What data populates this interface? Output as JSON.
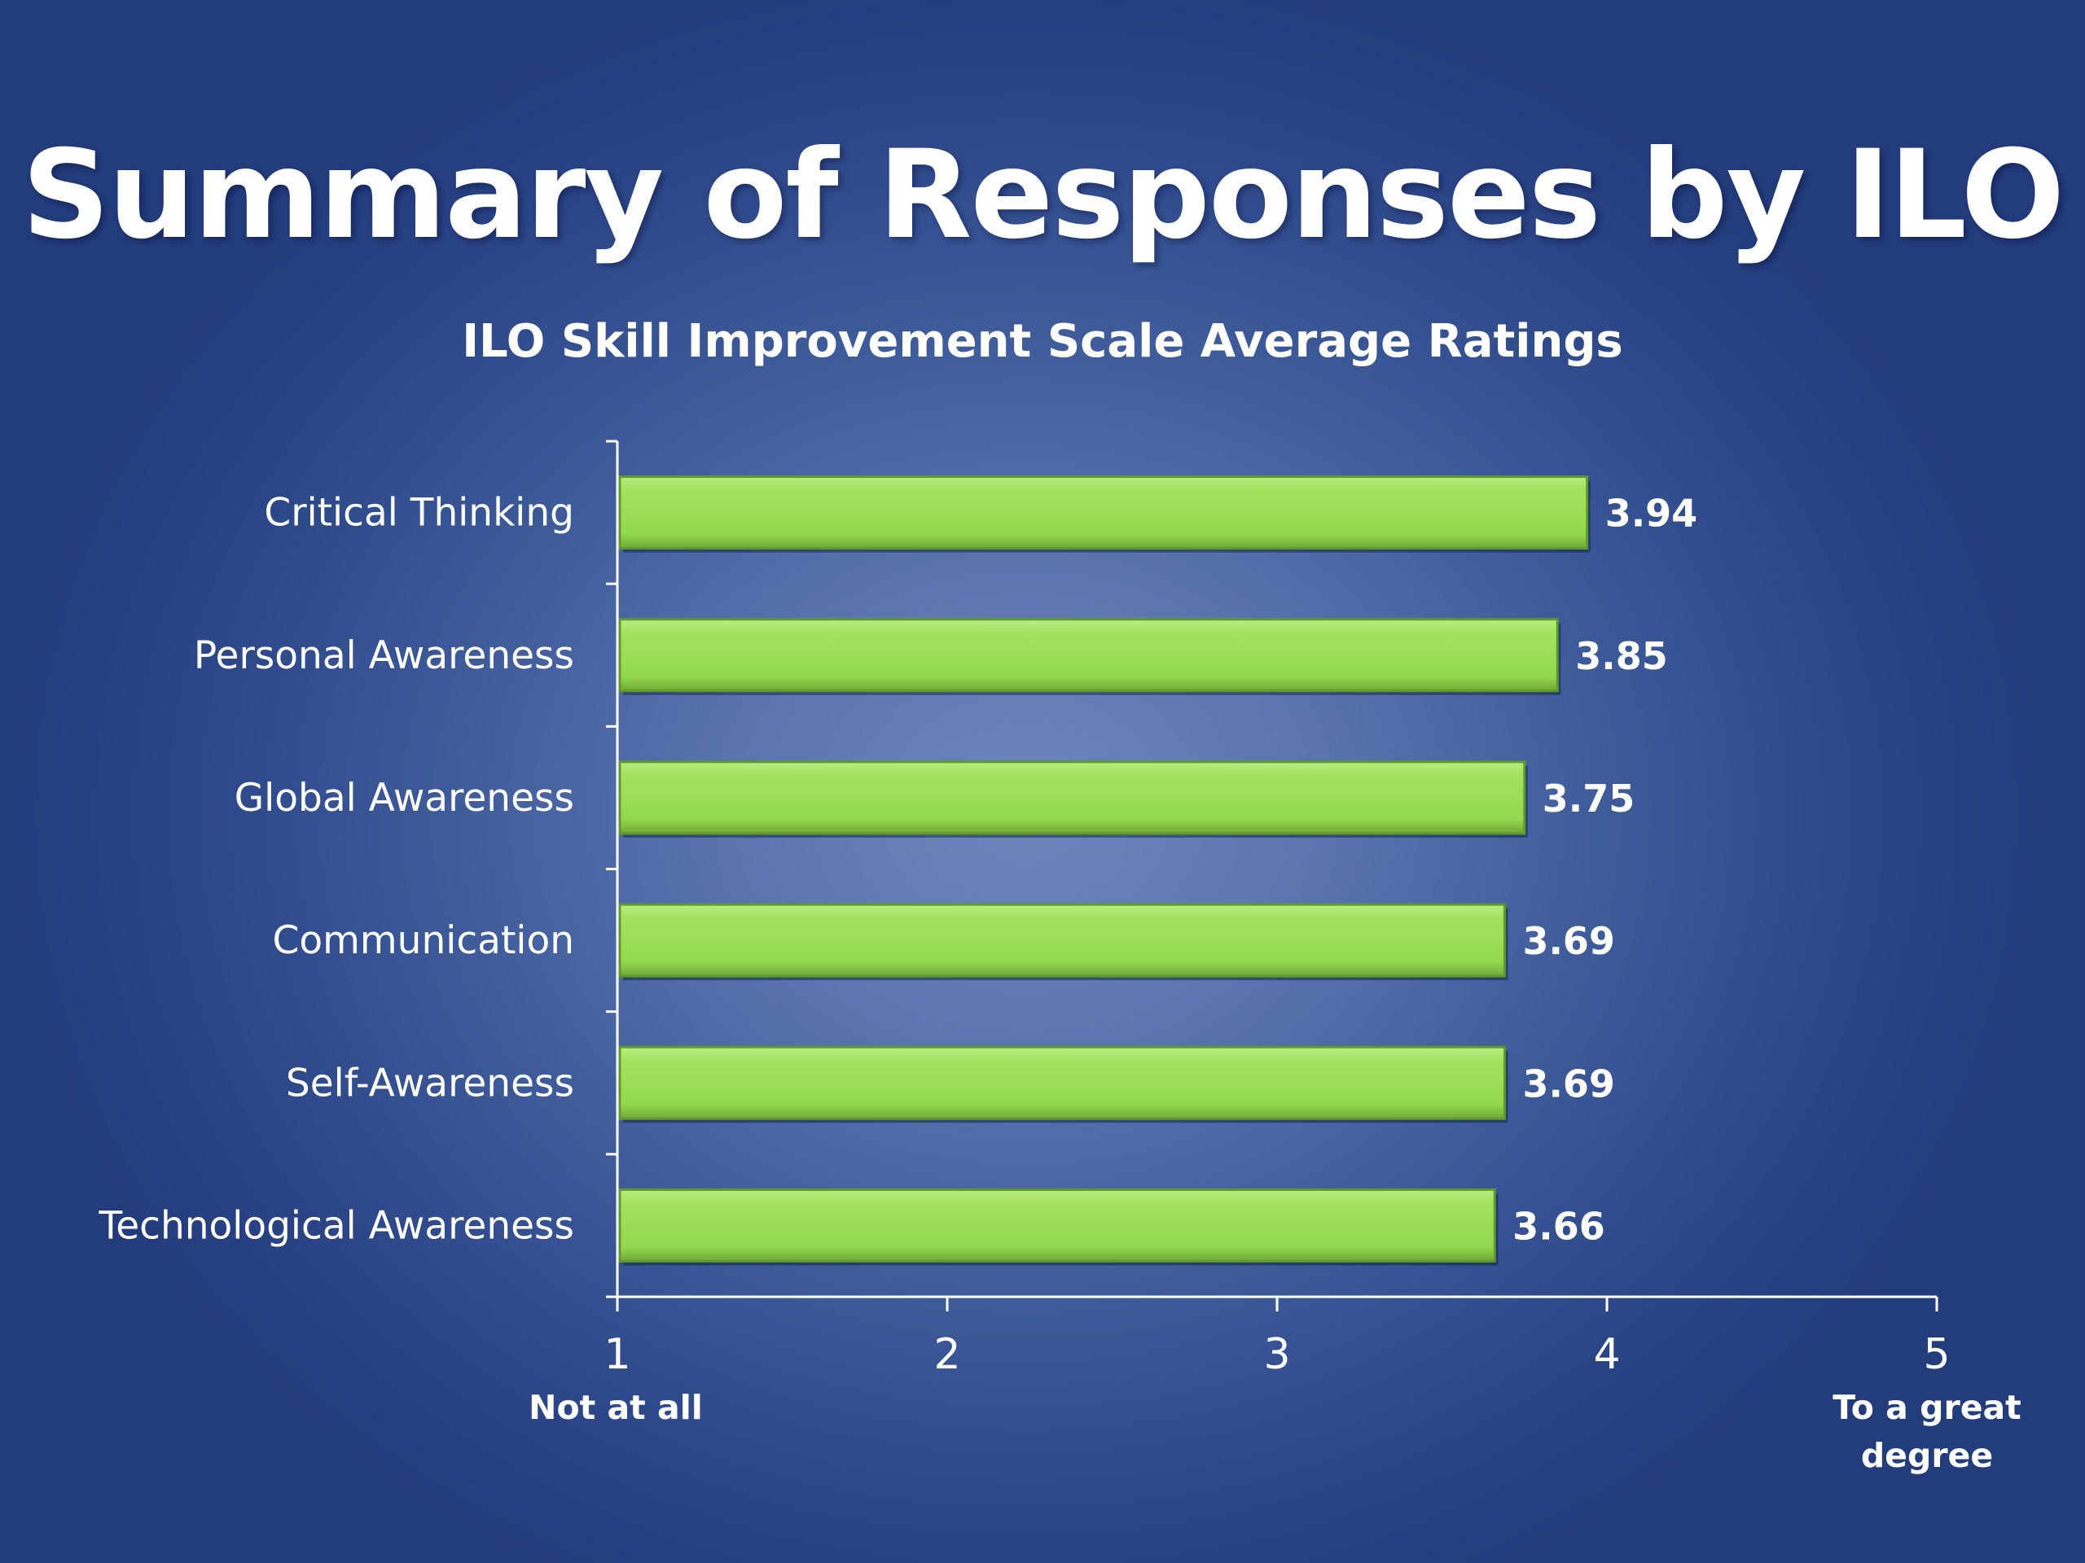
{
  "slide": {
    "title": "Summary of Responses by ILO",
    "background_color": "#4a64a4"
  },
  "chart_data": {
    "type": "bar",
    "orientation": "horizontal",
    "title": "ILO Skill Improvement Scale Average Ratings",
    "categories": [
      "Critical Thinking",
      "Personal Awareness",
      "Global Awareness",
      "Communication",
      "Self-Awareness",
      "Technological Awareness"
    ],
    "values": [
      3.94,
      3.85,
      3.75,
      3.69,
      3.69,
      3.66
    ],
    "data_labels": [
      "3.94",
      "3.85",
      "3.75",
      "3.69",
      "3.69",
      "3.66"
    ],
    "xlim": [
      1,
      5
    ],
    "x_ticks": [
      1,
      2,
      3,
      4,
      5
    ],
    "x_tick_labels": [
      "1",
      "2",
      "3",
      "4",
      "5"
    ],
    "x_tick_notes": {
      "low": "Not at all",
      "high_line1": "To a great",
      "high_line2": "degree"
    },
    "bar_color": "#97db52",
    "axis_color": "#ffffff",
    "grid": false,
    "legend": "none"
  }
}
